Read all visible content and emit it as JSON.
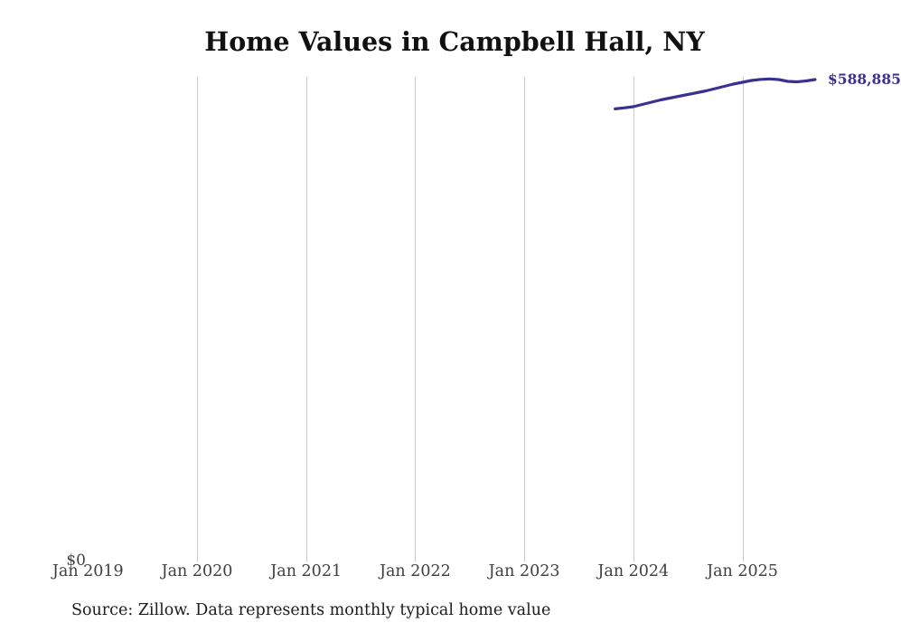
{
  "title": "Home Values in Campbell Hall, NY",
  "y_zero_label": "$0",
  "latest_value_label": "$588,885",
  "source_note": "Source: Zillow. Data represents monthly typical home value",
  "colors": {
    "line": "#3a3193",
    "latest_label": "#3a3193",
    "gridline": "#cbcbcb",
    "axis_text": "#3f3f3f",
    "title_text": "#111111",
    "source_text": "#1c1c1c",
    "background": "#ffffff"
  },
  "x_axis": {
    "ticks": [
      "Jan 2019",
      "Jan 2020",
      "Jan 2021",
      "Jan 2022",
      "Jan 2023",
      "Jan 2024",
      "Jan 2025"
    ]
  },
  "chart_data": {
    "type": "line",
    "title": "Home Values in Campbell Hall, NY",
    "xlabel": "",
    "ylabel": "",
    "legend": "none",
    "grid": "vertical-only",
    "x_range": [
      "Jan 2019",
      "Sep 2025"
    ],
    "ylim": [
      0,
      592000
    ],
    "series_name": "Typical home value ($)",
    "x": [
      "2023-11",
      "2023-12",
      "2024-01",
      "2024-02",
      "2024-03",
      "2024-04",
      "2024-05",
      "2024-06",
      "2024-07",
      "2024-08",
      "2024-09",
      "2024-10",
      "2024-11",
      "2024-12",
      "2025-01",
      "2025-02",
      "2025-03",
      "2025-04",
      "2025-05",
      "2025-06",
      "2025-07",
      "2025-08",
      "2025-09"
    ],
    "values": [
      553000,
      554200,
      555700,
      558400,
      561200,
      564000,
      566200,
      568400,
      570600,
      572800,
      575100,
      577800,
      580600,
      583400,
      585600,
      587800,
      589100,
      589700,
      588900,
      586700,
      586100,
      587200,
      588885
    ],
    "last_point_label": "$588,885"
  }
}
